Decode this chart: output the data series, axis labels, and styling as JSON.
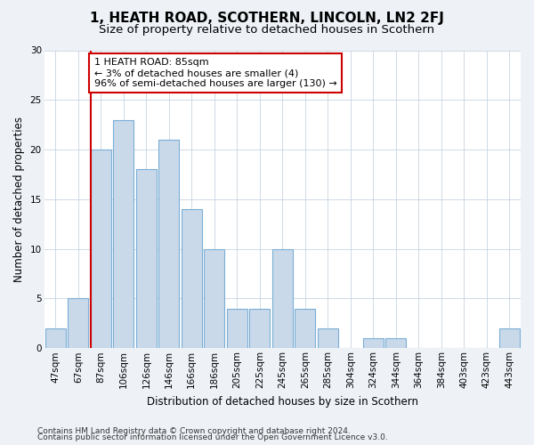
{
  "title": "1, HEATH ROAD, SCOTHERN, LINCOLN, LN2 2FJ",
  "subtitle": "Size of property relative to detached houses in Scothern",
  "xlabel": "Distribution of detached houses by size in Scothern",
  "ylabel": "Number of detached properties",
  "categories": [
    "47sqm",
    "67sqm",
    "87sqm",
    "106sqm",
    "126sqm",
    "146sqm",
    "166sqm",
    "186sqm",
    "205sqm",
    "225sqm",
    "245sqm",
    "265sqm",
    "285sqm",
    "304sqm",
    "324sqm",
    "344sqm",
    "364sqm",
    "384sqm",
    "403sqm",
    "423sqm",
    "443sqm"
  ],
  "values": [
    2,
    5,
    20,
    23,
    18,
    21,
    14,
    10,
    4,
    4,
    10,
    4,
    2,
    0,
    1,
    1,
    0,
    0,
    0,
    0,
    2
  ],
  "bar_color": "#c9d9ea",
  "bar_edge_color": "#7aaed6",
  "highlight_index": 2,
  "highlight_line_color": "#cc0000",
  "annotation_text": "1 HEATH ROAD: 85sqm\n← 3% of detached houses are smaller (4)\n96% of semi-detached houses are larger (130) →",
  "annotation_box_color": "#ffffff",
  "annotation_box_edge": "#cc0000",
  "ylim": [
    0,
    30
  ],
  "yticks": [
    0,
    5,
    10,
    15,
    20,
    25,
    30
  ],
  "footer_line1": "Contains HM Land Registry data © Crown copyright and database right 2024.",
  "footer_line2": "Contains public sector information licensed under the Open Government Licence v3.0.",
  "bg_color": "#eef2f7",
  "plot_bg_color": "#ffffff",
  "title_fontsize": 11,
  "subtitle_fontsize": 9.5,
  "axis_label_fontsize": 8.5,
  "tick_fontsize": 7.5,
  "annotation_fontsize": 8,
  "footer_fontsize": 6.5
}
